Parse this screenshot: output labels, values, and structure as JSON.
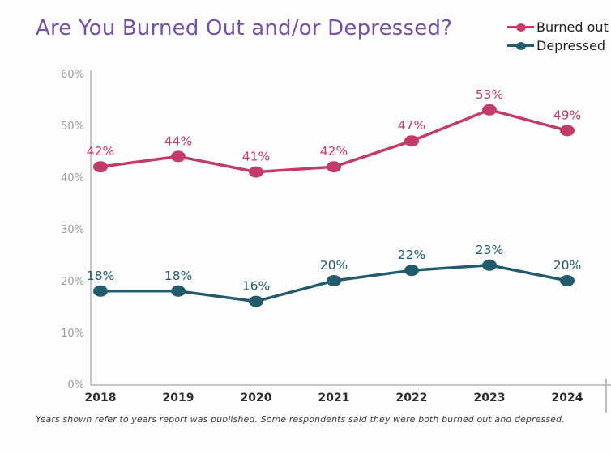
{
  "title": "Are You Burned Out and/or Depressed?",
  "legend": [
    {
      "label": "Burned out",
      "color": "#c23b69",
      "marker": "line-dot-icon"
    },
    {
      "label": "Depressed",
      "color": "#215b6c",
      "marker": "line-dot-icon"
    }
  ],
  "footnote": "Years shown refer to years report was published. Some respondents said they were both burned out and depressed.",
  "colors": {
    "title": "#7452a4",
    "axis": "#c6c6c6",
    "tick_label": "#9b9b9b",
    "year_label": "#2e2e2e",
    "footnote": "#3c3c3c"
  },
  "chart_data": {
    "type": "line",
    "categories": [
      "2018",
      "2019",
      "2020",
      "2021",
      "2022",
      "2023",
      "2024"
    ],
    "series": [
      {
        "name": "Burned out",
        "color": "#c23b69",
        "values": [
          42,
          44,
          41,
          42,
          47,
          53,
          49
        ]
      },
      {
        "name": "Depressed",
        "color": "#215b6c",
        "values": [
          18,
          18,
          16,
          20,
          22,
          23,
          20
        ]
      }
    ],
    "title": "Are You Burned Out and/or Depressed?",
    "xlabel": "",
    "ylabel": "",
    "ylim": [
      0,
      60
    ],
    "y_ticks": [
      "60%",
      "50%",
      "40%",
      "30%",
      "20%",
      "10%",
      "0%"
    ],
    "grid": false,
    "legend_position": "top-right",
    "value_suffix": "%",
    "data_labels": true
  }
}
